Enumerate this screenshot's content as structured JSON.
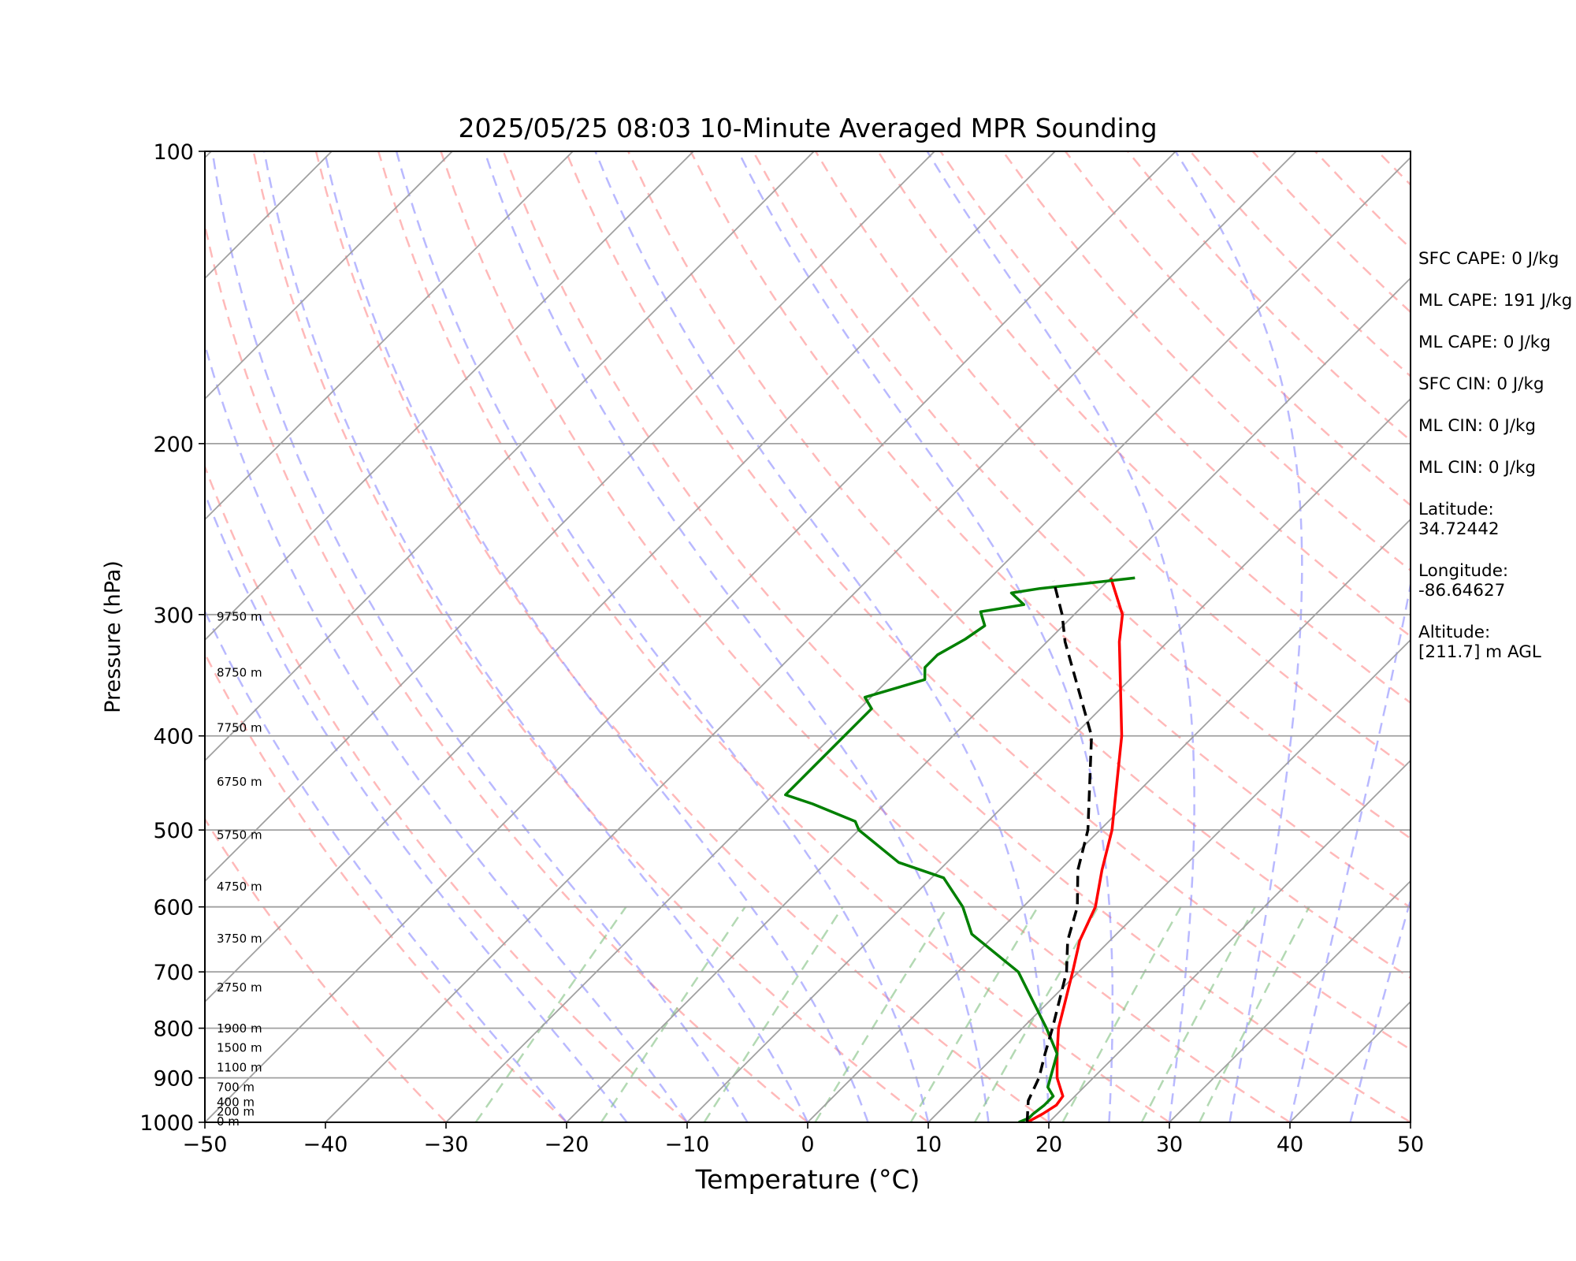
{
  "chart_data": {
    "type": "line",
    "title": "2025/05/25 08:03 10-Minute Averaged MPR Sounding",
    "xlabel": "Temperature (°C)",
    "ylabel": "Pressure (hPa)",
    "xlim": [
      -50,
      50
    ],
    "ylim": [
      1000,
      100
    ],
    "y_scale": "log",
    "grid": true,
    "x_ticks": [
      "−50",
      "−40",
      "−30",
      "−20",
      "−10",
      "0",
      "10",
      "20",
      "30",
      "40",
      "50"
    ],
    "y_ticks": [
      "100",
      "200",
      "300",
      "400",
      "500",
      "600",
      "700",
      "800",
      "900",
      "1000"
    ],
    "series": [
      {
        "color": "#ff0000",
        "points": [
          [
            18.2,
            1000
          ],
          [
            18.8,
            980
          ],
          [
            19.2,
            960
          ],
          [
            19.0,
            940
          ],
          [
            17.0,
            900
          ],
          [
            15.0,
            850
          ],
          [
            13.0,
            800
          ],
          [
            9.5,
            700
          ],
          [
            7.5,
            650
          ],
          [
            6.0,
            600
          ],
          [
            3.5,
            550
          ],
          [
            1.0,
            500
          ],
          [
            -6.0,
            400
          ],
          [
            -14.0,
            320
          ],
          [
            -16.0,
            300
          ],
          [
            -20.0,
            275
          ]
        ]
      },
      {
        "color": "#008000",
        "points": [
          [
            17.5,
            1000
          ],
          [
            18.0,
            990
          ],
          [
            18.0,
            980
          ],
          [
            18.2,
            960
          ],
          [
            18.2,
            940
          ],
          [
            17.0,
            920
          ],
          [
            15.0,
            850
          ],
          [
            12.0,
            800
          ],
          [
            5.0,
            700
          ],
          [
            -2.0,
            640
          ],
          [
            -5.0,
            600
          ],
          [
            -9.0,
            560
          ],
          [
            -14.0,
            540
          ],
          [
            -20.0,
            500
          ],
          [
            -21.0,
            490
          ],
          [
            -26.0,
            470
          ],
          [
            -29.0,
            460
          ],
          [
            -29.0,
            445
          ],
          [
            -29.0,
            430
          ],
          [
            -29.0,
            410
          ],
          [
            -29.0,
            390
          ],
          [
            -29.0,
            375
          ],
          [
            -30.5,
            365
          ],
          [
            -27.0,
            350
          ],
          [
            -28.0,
            340
          ],
          [
            -28.0,
            330
          ],
          [
            -27.0,
            318
          ],
          [
            -26.5,
            308
          ],
          [
            -28.0,
            298
          ],
          [
            -25.0,
            293
          ],
          [
            -27.0,
            285
          ],
          [
            -25.0,
            282
          ],
          [
            -18.0,
            275
          ]
        ]
      },
      {
        "color": "#000000",
        "style": "dashed",
        "points": [
          [
            18.2,
            1000
          ],
          [
            16.5,
            950
          ],
          [
            15.5,
            900
          ],
          [
            14.0,
            850
          ],
          [
            12.5,
            800
          ],
          [
            9.0,
            700
          ],
          [
            6.5,
            650
          ],
          [
            4.5,
            600
          ],
          [
            1.5,
            550
          ],
          [
            -1.0,
            500
          ],
          [
            -8.5,
            400
          ],
          [
            -18.5,
            320
          ],
          [
            -21.0,
            300
          ],
          [
            -24.5,
            277
          ]
        ]
      }
    ],
    "height_labels": [
      {
        "text": "0 m",
        "p": 1000
      },
      {
        "text": "200 m",
        "p": 977
      },
      {
        "text": "400 m",
        "p": 955
      },
      {
        "text": "700 m",
        "p": 922
      },
      {
        "text": "1100 m",
        "p": 880
      },
      {
        "text": "1500 m",
        "p": 840
      },
      {
        "text": "1900 m",
        "p": 802
      },
      {
        "text": "2750 m",
        "p": 728
      },
      {
        "text": "3750 m",
        "p": 648
      },
      {
        "text": "4750 m",
        "p": 573
      },
      {
        "text": "5750 m",
        "p": 507
      },
      {
        "text": "6750 m",
        "p": 447
      },
      {
        "text": "7750 m",
        "p": 393
      },
      {
        "text": "8750 m",
        "p": 345
      },
      {
        "text": "9750 m",
        "p": 302
      }
    ],
    "stats": [
      "SFC CAPE: 0 J/kg",
      "ML CAPE: 191 J/kg",
      "ML CAPE: 0 J/kg",
      "SFC CIN: 0 J/kg",
      "ML CIN: 0 J/kg",
      "ML CIN: 0 J/kg"
    ],
    "location": {
      "latitude_label": "Latitude:",
      "latitude": "34.72442",
      "longitude_label": "Longitude:",
      "longitude": "-86.64627",
      "altitude_label": "Altitude:",
      "altitude": "[211.7] m AGL"
    },
    "colors": {
      "isotherm": "#a0a0a0",
      "dry_adiabat": "#ff8080",
      "moist_adiabat": "#8080ff",
      "mixing_ratio": "#80c080"
    }
  }
}
